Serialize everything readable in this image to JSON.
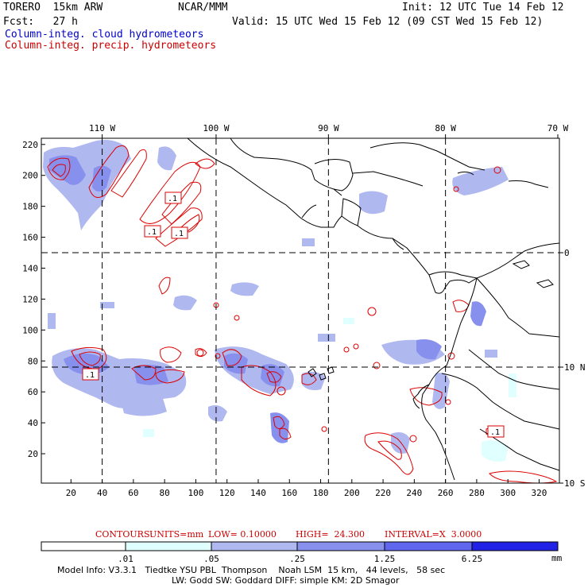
{
  "header": {
    "model": "TORERO  15km ARW",
    "center": "NCAR/MMM",
    "init": "Init: 12 UTC Tue 14 Feb 12",
    "fcst": "Fcst:   27 h",
    "valid": "Valid: 15 UTC Wed 15 Feb 12 (09 CST Wed 15 Feb 12)",
    "field_cloud": "Column-integ. cloud hydrometeors",
    "field_precip": "Column-integ. precip. hydrometeors"
  },
  "colors": {
    "cloud_title": "#0000cc",
    "precip_title": "#cc0000",
    "precip_contour": "#dd0000",
    "shade_1": "#e0ffff",
    "shade_2": "#b0b8f0",
    "shade_3": "#8890ee",
    "shade_4": "#6066ee",
    "shade_5": "#2222e6"
  },
  "map": {
    "lon_labels": [
      "110 W",
      "100 W",
      "90 W",
      "80 W",
      "70 W"
    ],
    "lat_labels": [
      "10 N",
      "0",
      "10 S"
    ],
    "x_ticks": [
      "20",
      "40",
      "60",
      "80",
      "100",
      "120",
      "140",
      "160",
      "180",
      "200",
      "220",
      "240",
      "260",
      "280",
      "300",
      "320"
    ],
    "y_ticks": [
      "20",
      "40",
      "60",
      "80",
      "100",
      "120",
      "140",
      "160",
      "180",
      "200",
      "220"
    ],
    "x_grid_range": [
      1,
      333
    ],
    "y_grid_range": [
      1,
      224
    ],
    "meridian_grid_x": [
      40,
      113,
      185,
      260
    ],
    "parallel_grid_y": [
      76,
      150
    ],
    "contour_label": ".1"
  },
  "contours": {
    "label": "CONTOURS:",
    "units": "UNITS=mm",
    "low": "LOW= 0.10000",
    "high": "HIGH=  24.300",
    "interval": "INTERVAL=X  3.0000"
  },
  "colorbar": {
    "levels": [
      ".01",
      ".05",
      ".25",
      "1.25",
      "6.25"
    ],
    "units": "mm"
  },
  "footer": {
    "line1": "Model Info: V3.3.1   Tiedtke YSU PBL  Thompson    Noah LSM  15 km,   44 levels,   58 sec",
    "line2": "LW: Godd SW: Goddard DIFF: simple KM: 2D Smagor"
  }
}
